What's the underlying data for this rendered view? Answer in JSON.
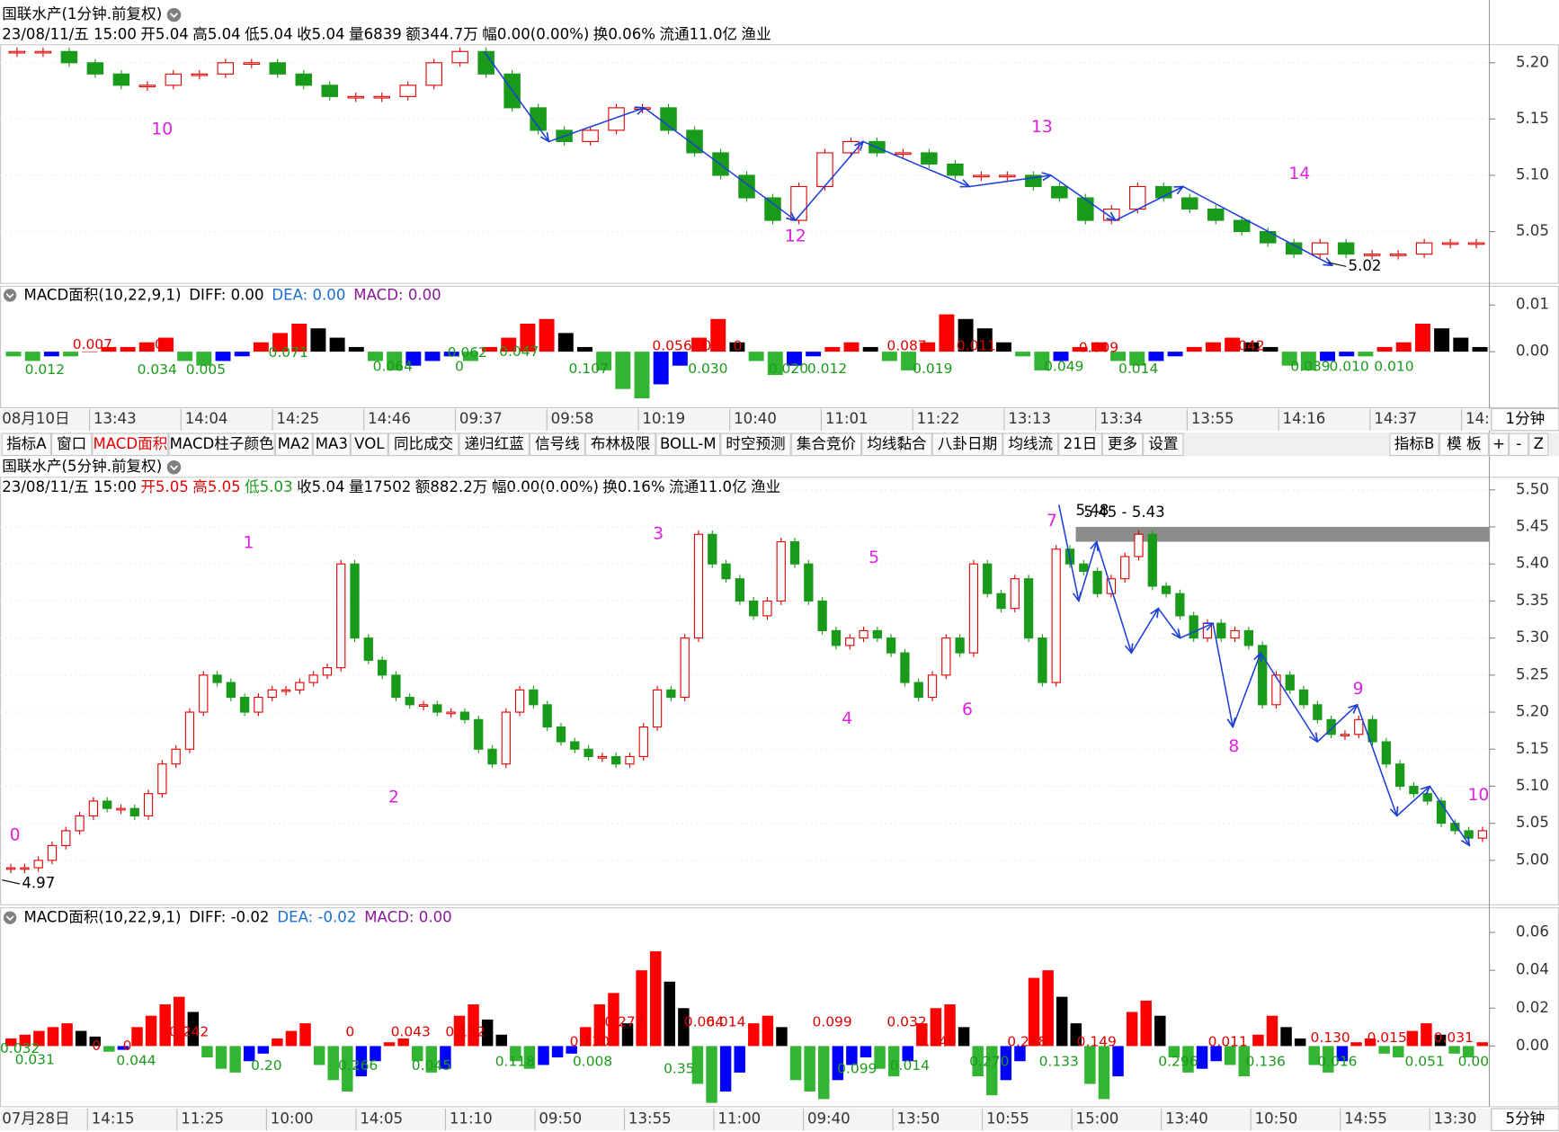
{
  "upper": {
    "title": "国联水产(1分钟.前复权)",
    "info": [
      "23/08/11/五 15:00",
      "开5.04",
      "高5.04",
      "低5.04",
      "收5.04",
      "量6839",
      "额344.7万",
      "幅0.00(0.00%)",
      "换0.06%",
      "流通11.0亿",
      "渔业"
    ],
    "info_colors": [
      "#000",
      "#000",
      "#000",
      "#000",
      "#000",
      "#000",
      "#000",
      "#000",
      "#000",
      "#000",
      "#000"
    ],
    "price": {
      "type": "candlestick",
      "values": [
        5.21,
        5.21,
        5.2,
        5.19,
        5.18,
        5.18,
        5.19,
        5.19,
        5.2,
        5.2,
        5.19,
        5.18,
        5.17,
        5.17,
        5.17,
        5.18,
        5.2,
        5.21,
        5.19,
        5.16,
        5.14,
        5.13,
        5.14,
        5.16,
        5.16,
        5.14,
        5.12,
        5.1,
        5.08,
        5.06,
        5.09,
        5.12,
        5.13,
        5.12,
        5.12,
        5.11,
        5.1,
        5.1,
        5.1,
        5.09,
        5.08,
        5.06,
        5.07,
        5.09,
        5.08,
        5.07,
        5.06,
        5.05,
        5.04,
        5.03,
        5.04,
        5.03,
        5.03,
        5.03,
        5.04,
        5.04,
        5.04
      ],
      "up_color": "#e00000",
      "down_color": "#1a9a1a",
      "ylim": [
        5.004,
        5.216
      ],
      "yticks": [
        {
          "value": 5.2,
          "label": "5.20"
        },
        5.15,
        {
          "value": 5.1,
          "label": "5.10"
        },
        5.05
      ],
      "grid": true,
      "zigzag": [
        5.21,
        5.13,
        5.16,
        5.06,
        5.13,
        5.09,
        5.1,
        5.06,
        5.09,
        5.02
      ],
      "zigzag_color": "#1d3fd8",
      "wave_labels": [
        "10",
        "12",
        "13",
        "14"
      ],
      "wave_color": "#e020e0",
      "low_label": "5.02"
    },
    "macd": {
      "title": "MACD面积(10,22,9,1)",
      "diff": "DIFF: 0.00",
      "dea": "DEA: 0.00",
      "macd": "MACD: 0.00",
      "dea_color": "#1a6fd0",
      "macd_color": "#8a1a9a",
      "values": [
        -0.001,
        -0.002,
        -0.001,
        -0.001,
        0.0,
        0.001,
        0.001,
        0.002,
        0.003,
        -0.002,
        -0.003,
        -0.002,
        -0.001,
        0.002,
        0.004,
        0.006,
        0.005,
        0.003,
        0.001,
        -0.002,
        -0.004,
        -0.003,
        -0.002,
        -0.001,
        -0.002,
        0.001,
        0.003,
        0.006,
        0.007,
        0.004,
        0.001,
        -0.004,
        -0.008,
        -0.01,
        -0.007,
        -0.003,
        0.003,
        0.007,
        0.002,
        -0.002,
        -0.005,
        -0.003,
        -0.001,
        0.001,
        0.002,
        0.001,
        -0.002,
        -0.004,
        0.002,
        0.008,
        0.007,
        0.005,
        0.002,
        -0.001,
        -0.004,
        -0.002,
        0.001,
        0.002,
        -0.002,
        -0.003,
        -0.002,
        -0.001,
        0.001,
        0.002,
        0.003,
        0.002,
        0.001,
        -0.003,
        -0.004,
        -0.002,
        -0.001,
        -0.001,
        0.001,
        0.002,
        0.006,
        0.005,
        0.003,
        0.001
      ],
      "colors": {
        "up_rise": "#ff0000",
        "up_fall": "#000000",
        "down_fall": "#33b533",
        "down_rise": "#0000ff"
      },
      "ylim": [
        -0.012,
        0.014
      ],
      "yticks": [
        0.01,
        {
          "value": 0,
          "label": "0.00"
        }
      ],
      "labels": [
        "0.007",
        "0",
        "0.071",
        "0.012",
        "0.034",
        "0.005",
        "0.064",
        "0",
        "0.062",
        "0.047",
        "0.107",
        "0.030",
        "0.056",
        "0",
        "0",
        "0.020",
        "0.012",
        "0.087",
        "0.011",
        "0.019",
        "0.049",
        "0.014",
        "0.009",
        "0.042",
        "0.039",
        "0.010",
        "0.010"
      ],
      "label_colors": {
        "up": "#e00000",
        "down": "#1a9a1a"
      }
    },
    "xaxis": [
      "08月10日",
      "13:43",
      "14:04",
      "14:25",
      "14:46",
      "09:37",
      "09:58",
      "10:19",
      "10:40",
      "11:01",
      "11:22",
      "13:13",
      "13:34",
      "13:55",
      "14:16",
      "14:37",
      "14:"
    ],
    "period": "1分钟"
  },
  "toolbar": {
    "left": [
      "指标A",
      "窗口",
      "MACD面积",
      "MACD柱子颜色",
      "MA2",
      "MA3",
      "VOL",
      "同比成交",
      "递归红蓝",
      "信号线",
      "布林极限",
      "BOLL-M",
      "时空预测",
      "集合竞价",
      "均线黏合",
      "八卦日期",
      "均线流",
      "21日",
      "更多",
      "设置"
    ],
    "active_index": 2,
    "active_color": "#e00000",
    "right": [
      "指标B",
      "模 板",
      "+",
      "-",
      "Z"
    ]
  },
  "lower": {
    "title": "国联水产(5分钟.前复权)",
    "info": [
      "23/08/11/五 15:00",
      "开5.05",
      "高5.05",
      "低5.03",
      "收5.04",
      "量17502",
      "额882.2万",
      "幅0.00(0.00%)",
      "换0.16%",
      "流通11.0亿",
      "渔业"
    ],
    "info_colors": [
      "#000",
      "#e00000",
      "#e00000",
      "#1a9a1a",
      "#000",
      "#000",
      "#000",
      "#000",
      "#000",
      "#000",
      "#000"
    ],
    "price": {
      "type": "candlestick",
      "values": [
        4.99,
        4.99,
        5.0,
        5.02,
        5.04,
        5.06,
        5.08,
        5.07,
        5.07,
        5.06,
        5.09,
        5.13,
        5.15,
        5.2,
        5.25,
        5.24,
        5.22,
        5.2,
        5.22,
        5.23,
        5.23,
        5.24,
        5.25,
        5.26,
        5.4,
        5.3,
        5.27,
        5.25,
        5.22,
        5.21,
        5.21,
        5.2,
        5.2,
        5.19,
        5.15,
        5.13,
        5.2,
        5.23,
        5.21,
        5.18,
        5.16,
        5.15,
        5.14,
        5.14,
        5.13,
        5.14,
        5.18,
        5.23,
        5.22,
        5.3,
        5.44,
        5.4,
        5.38,
        5.35,
        5.33,
        5.35,
        5.43,
        5.4,
        5.35,
        5.31,
        5.29,
        5.3,
        5.31,
        5.3,
        5.28,
        5.24,
        5.22,
        5.25,
        5.3,
        5.28,
        5.4,
        5.36,
        5.34,
        5.38,
        5.3,
        5.24,
        5.42,
        5.4,
        5.39,
        5.36,
        5.38,
        5.41,
        5.44,
        5.37,
        5.36,
        5.33,
        5.3,
        5.32,
        5.3,
        5.31,
        5.29,
        5.21,
        5.25,
        5.23,
        5.21,
        5.19,
        5.17,
        5.17,
        5.19,
        5.16,
        5.13,
        5.1,
        5.09,
        5.08,
        5.05,
        5.04,
        5.03,
        5.04
      ],
      "up_color": "#e00000",
      "down_color": "#1a9a1a",
      "ylim": [
        4.94,
        5.517
      ],
      "yticks": [
        {
          "value": 5.5,
          "label": "5.50"
        },
        5.45,
        {
          "value": 5.4,
          "label": "5.40"
        },
        5.35,
        {
          "value": 5.3,
          "label": "5.30"
        },
        5.25,
        {
          "value": 5.2,
          "label": "5.20"
        },
        5.15,
        {
          "value": 5.1,
          "label": "5.10"
        },
        5.05,
        {
          "value": 5,
          "label": "5.00"
        }
      ],
      "grid": true,
      "zigzag": [
        5.48,
        5.35,
        5.43,
        5.28,
        5.34,
        5.3,
        5.32,
        5.18,
        5.28,
        5.16,
        5.21,
        5.06,
        5.1,
        5.02
      ],
      "zigzag_color": "#1d3fd8",
      "wave_labels": [
        "0",
        "1",
        "2",
        "3",
        "4",
        "5",
        "6",
        "7",
        "8",
        "9",
        "10"
      ],
      "wave_color": "#e020e0",
      "low_label": "4.97",
      "high_label": "5.48",
      "band": {
        "label": "5.45 - 5.43",
        "high": 5.45,
        "low": 5.43,
        "color": "#8c8c8c"
      }
    },
    "macd": {
      "title": "MACD面积(10,22,9,1)",
      "diff": "DIFF: -0.02",
      "dea": "DEA: -0.02",
      "macd": "MACD: 0.00",
      "dea_color": "#1a6fd0",
      "macd_color": "#8a1a9a",
      "values": [
        0.004,
        0.006,
        0.008,
        0.01,
        0.012,
        0.008,
        0.005,
        -0.003,
        -0.002,
        0.01,
        0.016,
        0.022,
        0.026,
        0.018,
        -0.006,
        -0.012,
        -0.014,
        -0.008,
        -0.004,
        0.004,
        0.008,
        0.012,
        -0.01,
        -0.018,
        -0.024,
        -0.016,
        -0.008,
        0.002,
        0.004,
        -0.008,
        -0.014,
        -0.012,
        0.016,
        0.022,
        0.014,
        0.006,
        -0.008,
        -0.012,
        -0.01,
        -0.006,
        -0.004,
        0.01,
        0.022,
        0.028,
        0.012,
        0.04,
        0.05,
        0.034,
        0.02,
        -0.02,
        -0.03,
        -0.024,
        -0.014,
        0.012,
        0.016,
        0.01,
        -0.018,
        -0.024,
        -0.028,
        -0.018,
        -0.01,
        -0.006,
        -0.012,
        -0.016,
        -0.008,
        0.012,
        0.02,
        0.022,
        0.01,
        -0.016,
        -0.026,
        -0.018,
        -0.008,
        0.036,
        0.04,
        0.026,
        0.012,
        -0.02,
        -0.028,
        -0.016,
        0.018,
        0.024,
        0.016,
        -0.006,
        -0.014,
        -0.012,
        -0.008,
        -0.01,
        -0.016,
        0.006,
        0.016,
        0.01,
        0.004,
        -0.01,
        -0.014,
        -0.008,
        0.002,
        0.004,
        -0.004,
        -0.006,
        0.008,
        0.012,
        0.006,
        -0.004,
        -0.006,
        0.002
      ],
      "colors": {
        "up_rise": "#ff0000",
        "up_fall": "#000000",
        "down_fall": "#33b533",
        "down_rise": "#0000ff"
      },
      "ylim": [
        -0.032,
        0.073
      ],
      "yticks": [
        0.06,
        0.04,
        0.02,
        {
          "value": 0,
          "label": "0.00"
        }
      ],
      "labels": [
        "0.032",
        "0.031",
        "0",
        "0",
        "0.044",
        "0.242",
        "0.20",
        "0",
        "0.266",
        "0.043",
        "0.045",
        "0.132",
        "0.118",
        "0.008",
        "0.130",
        "0.272",
        "0.35",
        "0.064",
        "0.014",
        "0.099",
        "0.099",
        "0.032",
        "0.014",
        "0.140",
        "0.270",
        "0.258",
        "0.133",
        "0.149",
        "0.296",
        "0.011",
        "0.136",
        "0.130",
        "0.015",
        "0.016",
        "0.051",
        "0.031",
        "0.00"
      ],
      "label_colors": {
        "up": "#e00000",
        "down": "#1a9a1a"
      }
    },
    "xaxis": [
      "07月28日",
      "14:15",
      "11:25",
      "10:00",
      "14:05",
      "11:10",
      "09:50",
      "13:55",
      "11:00",
      "09:40",
      "13:50",
      "10:55",
      "15:00",
      "13:40",
      "10:50",
      "14:55",
      "13:30"
    ],
    "period": "5分钟"
  }
}
